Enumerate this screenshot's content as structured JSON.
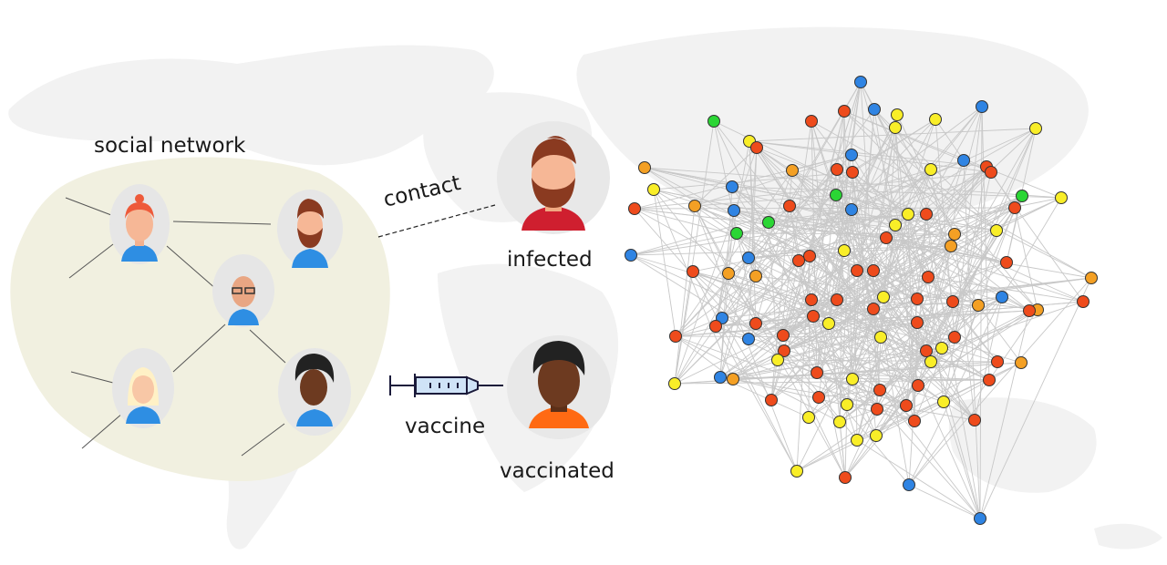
{
  "labels": {
    "social_network": "social network",
    "contact": "contact",
    "infected": "infected",
    "vaccine": "vaccine",
    "vaccinated": "vaccinated"
  },
  "colors": {
    "map": "#f1f1f1",
    "bubble": "#f1f0e0",
    "avatar_circle": "#e6e6e6",
    "edge": "#c8c8c8",
    "infected_node": "#ee4b1c",
    "orange_node": "#f4a024",
    "yellow_node": "#f9ee28",
    "blue_node": "#2f84e3",
    "green_node": "#2bd635",
    "infected_shirt": "#cf1f2f",
    "vaccinated_shirt": "#ff6a13",
    "person_shirt": "#2e8ee3"
  },
  "icons": [
    "person-woman-red-hair-icon",
    "person-bearded-man-icon",
    "person-bald-glasses-icon",
    "person-blonde-woman-icon",
    "person-dark-skin-icon",
    "syringe-icon"
  ]
}
